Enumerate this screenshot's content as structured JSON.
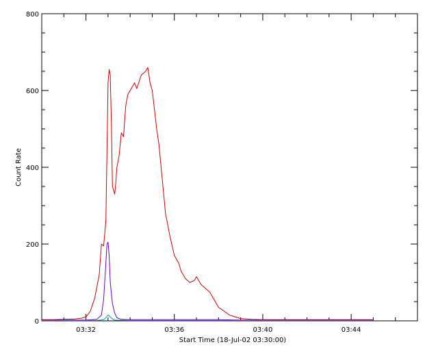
{
  "chart_data": {
    "type": "line",
    "title": "",
    "xlabel": "Start Time (18-Jul-02 03:30:00)",
    "ylabel": "Count Rate",
    "xlim": [
      0,
      17
    ],
    "ylim": [
      0,
      800
    ],
    "xticks": [
      {
        "value": 2,
        "label": "03:32"
      },
      {
        "value": 6,
        "label": "03:36"
      },
      {
        "value": 10,
        "label": "03:40"
      },
      {
        "value": 14,
        "label": "03:44"
      }
    ],
    "yticks": [
      0,
      200,
      400,
      600,
      800
    ],
    "grid": false,
    "legend": "none",
    "series": [
      {
        "color": "#cc0000",
        "x": [
          0.0,
          0.5,
          1.0,
          1.5,
          1.8,
          2.0,
          2.2,
          2.4,
          2.6,
          2.7,
          2.8,
          2.9,
          3.0,
          3.05,
          3.1,
          3.15,
          3.2,
          3.3,
          3.35,
          3.4,
          3.5,
          3.6,
          3.7,
          3.8,
          3.9,
          4.0,
          4.1,
          4.2,
          4.3,
          4.5,
          4.7,
          4.8,
          4.9,
          5.0,
          5.1,
          5.2,
          5.3,
          5.4,
          5.5,
          5.6,
          5.7,
          5.8,
          6.0,
          6.2,
          6.3,
          6.5,
          6.7,
          6.9,
          7.0,
          7.2,
          7.4,
          7.5,
          7.6,
          7.8,
          8.0,
          8.5,
          9.0,
          9.5,
          10.0,
          11.0,
          12.0,
          13.0,
          14.0,
          15.0
        ],
        "y": [
          3,
          3,
          4,
          5,
          7,
          10,
          25,
          60,
          120,
          200,
          195,
          260,
          620,
          655,
          640,
          520,
          350,
          330,
          360,
          400,
          430,
          490,
          480,
          560,
          590,
          600,
          610,
          620,
          605,
          640,
          650,
          660,
          620,
          600,
          550,
          500,
          460,
          400,
          340,
          280,
          250,
          220,
          170,
          150,
          130,
          110,
          100,
          105,
          115,
          95,
          85,
          80,
          75,
          55,
          35,
          15,
          6,
          4,
          3,
          3,
          3,
          3,
          3,
          3
        ]
      },
      {
        "color": "#6600cc",
        "x": [
          0.0,
          2.0,
          2.5,
          2.7,
          2.8,
          2.9,
          2.95,
          3.0,
          3.05,
          3.1,
          3.2,
          3.3,
          3.4,
          3.6,
          4.0,
          5.0,
          6.0,
          7.0,
          8.0,
          9.0,
          10.0,
          12.0,
          14.0,
          15.0
        ],
        "y": [
          2,
          2,
          4,
          15,
          55,
          150,
          200,
          205,
          170,
          100,
          45,
          20,
          8,
          4,
          3,
          3,
          3,
          3,
          3,
          2,
          2,
          2,
          2,
          2
        ]
      },
      {
        "color": "#009999",
        "x": [
          0.0,
          2.5,
          2.8,
          2.9,
          3.0,
          3.05,
          3.1,
          3.2,
          3.3,
          4.0,
          6.0,
          8.0,
          10.0,
          12.0,
          14.0,
          15.0
        ],
        "y": [
          1,
          1,
          3,
          8,
          15,
          14,
          10,
          5,
          2,
          1,
          1,
          1,
          1,
          1,
          1,
          1
        ]
      }
    ]
  }
}
